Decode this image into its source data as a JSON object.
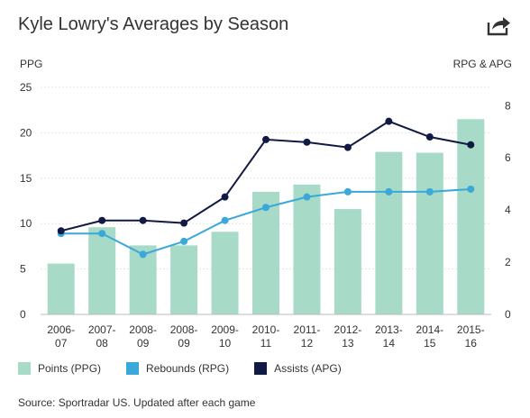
{
  "header": {
    "title": "Kyle Lowry's Averages by Season",
    "share_icon": "share-arrow-icon"
  },
  "chart_data": {
    "type": "bar+line",
    "title": "Kyle Lowry's Averages by Season",
    "categories": [
      "2006-\n07",
      "2007-\n08",
      "2008-\n09",
      "2008-\n09",
      "2009-\n10",
      "2010-\n11",
      "2011-\n12",
      "2012-\n13",
      "2013-\n14",
      "2014-\n15",
      "2015-\n16"
    ],
    "left_axis": {
      "label": "PPG",
      "ylim": [
        0,
        25
      ],
      "ticks": [
        0,
        5,
        10,
        15,
        20,
        25
      ]
    },
    "right_axis": {
      "label": "RPG & APG",
      "ylim": [
        0,
        8.7
      ],
      "ticks": [
        0,
        2,
        4,
        6,
        8
      ]
    },
    "series": [
      {
        "name": "Points (PPG)",
        "type": "bar",
        "axis": "left",
        "color": "#a8dac8",
        "values": [
          5.6,
          9.6,
          7.6,
          7.6,
          9.1,
          13.5,
          14.3,
          11.6,
          17.9,
          17.8,
          21.5
        ]
      },
      {
        "name": "Rebounds (RPG)",
        "type": "line",
        "axis": "right",
        "color": "#3aa8d8",
        "values": [
          3.1,
          3.1,
          2.3,
          2.8,
          3.6,
          4.1,
          4.5,
          4.7,
          4.7,
          4.7,
          4.8
        ]
      },
      {
        "name": "Assists (APG)",
        "type": "line",
        "axis": "right",
        "color": "#111a44",
        "values": [
          3.2,
          3.6,
          3.6,
          3.5,
          4.5,
          6.7,
          6.6,
          6.4,
          7.4,
          6.8,
          6.5
        ]
      }
    ],
    "grid": true,
    "legend_position": "bottom-left"
  },
  "footer": {
    "source": "Source: Sportradar US. Updated after each game"
  }
}
